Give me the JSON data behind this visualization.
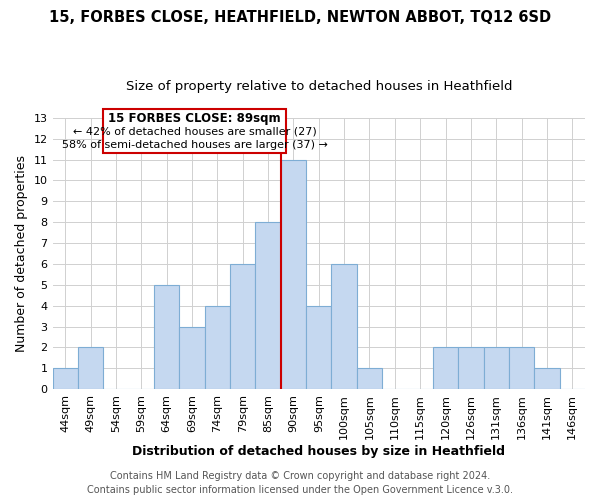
{
  "title": "15, FORBES CLOSE, HEATHFIELD, NEWTON ABBOT, TQ12 6SD",
  "subtitle": "Size of property relative to detached houses in Heathfield",
  "xlabel": "Distribution of detached houses by size in Heathfield",
  "ylabel": "Number of detached properties",
  "footer_line1": "Contains HM Land Registry data © Crown copyright and database right 2024.",
  "footer_line2": "Contains public sector information licensed under the Open Government Licence v.3.0.",
  "bin_labels": [
    "44sqm",
    "49sqm",
    "54sqm",
    "59sqm",
    "64sqm",
    "69sqm",
    "74sqm",
    "79sqm",
    "85sqm",
    "90sqm",
    "95sqm",
    "100sqm",
    "105sqm",
    "110sqm",
    "115sqm",
    "120sqm",
    "126sqm",
    "131sqm",
    "136sqm",
    "141sqm",
    "146sqm"
  ],
  "bar_heights": [
    1,
    2,
    0,
    0,
    5,
    3,
    4,
    6,
    8,
    11,
    4,
    6,
    1,
    0,
    0,
    2,
    2,
    2,
    2,
    1,
    0
  ],
  "bar_color": "#c5d8f0",
  "bar_edge_color": "#7eadd4",
  "subject_line_color": "#cc0000",
  "annotation_box_text_line1": "15 FORBES CLOSE: 89sqm",
  "annotation_box_text_line2": "← 42% of detached houses are smaller (27)",
  "annotation_box_text_line3": "58% of semi-detached houses are larger (37) →",
  "ylim": [
    0,
    13
  ],
  "yticks": [
    0,
    1,
    2,
    3,
    4,
    5,
    6,
    7,
    8,
    9,
    10,
    11,
    12,
    13
  ],
  "background_color": "#ffffff",
  "grid_color": "#d0d0d0",
  "title_fontsize": 10.5,
  "subtitle_fontsize": 9.5,
  "axis_label_fontsize": 9,
  "tick_fontsize": 8,
  "footer_fontsize": 7
}
